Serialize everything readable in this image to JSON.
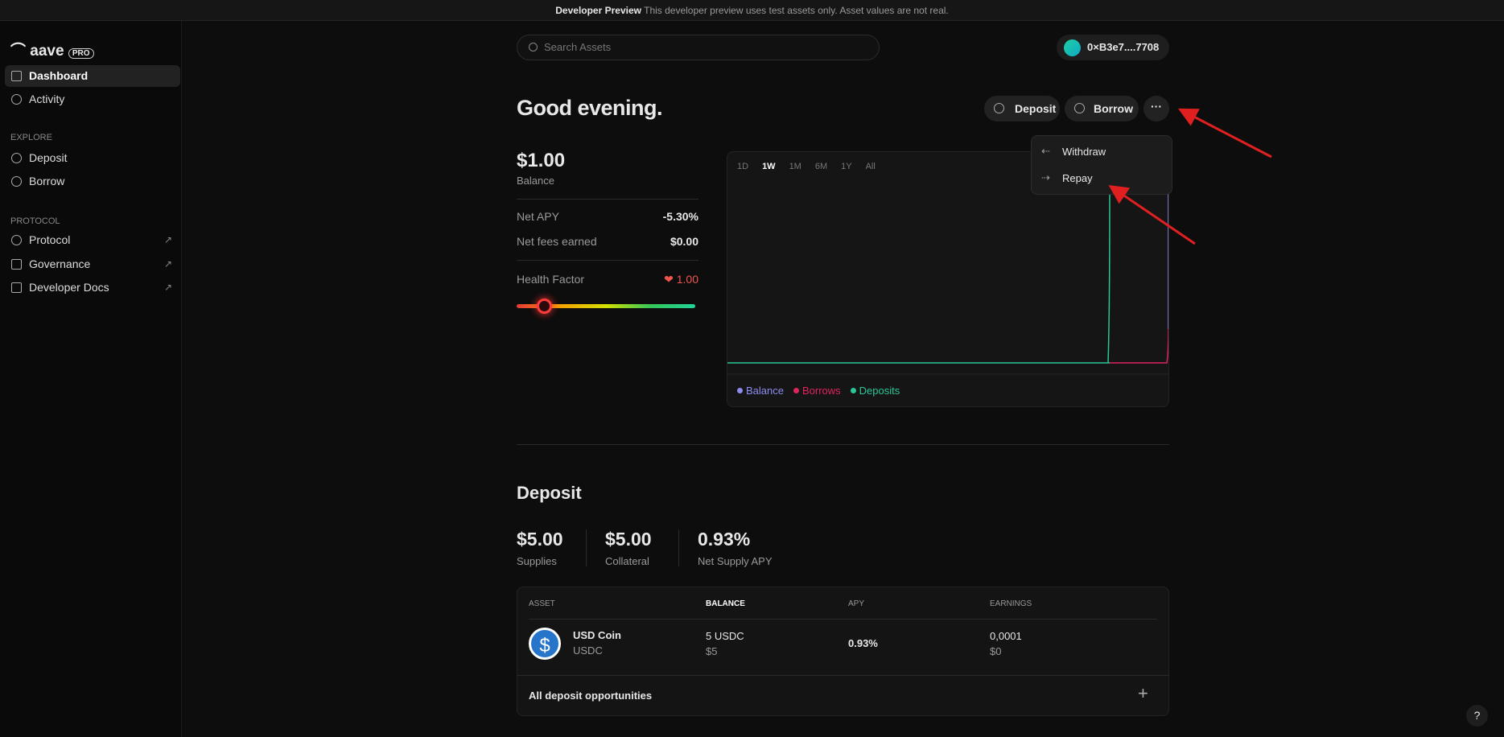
{
  "banner": {
    "title": "Developer Preview",
    "text": "This developer preview uses test assets only. Asset values are not real."
  },
  "sidebar": {
    "logo": "aave",
    "badge": "PRO",
    "nav": [
      "Dashboard",
      "Activity"
    ],
    "explore": {
      "heading": "EXPLORE",
      "items": [
        "Deposit",
        "Borrow"
      ]
    },
    "protocol": {
      "heading": "PROTOCOL",
      "items": [
        "Protocol",
        "Governance",
        "Developer Docs"
      ]
    }
  },
  "header": {
    "search": "Search Assets",
    "wallet": "0×B3e7....7708"
  },
  "greeting": "Good evening.",
  "actions": {
    "deposit": "Deposit",
    "borrow": "Borrow",
    "menu": [
      "Withdraw",
      "Repay"
    ]
  },
  "summary": {
    "balance": "$1.00",
    "balance_label": "Balance",
    "net_apy_label": "Net APY",
    "net_apy": "-5.30%",
    "fees_label": "Net fees earned",
    "fees": "$0.00",
    "health_label": "Health Factor",
    "health": "1.00"
  },
  "chart": {
    "timeframes": [
      "1D",
      "1W",
      "1M",
      "6M",
      "1Y",
      "All"
    ],
    "legend": [
      "Balance",
      "Borrows",
      "Deposits"
    ]
  },
  "deposit": {
    "title": "Deposit",
    "stats": [
      {
        "value": "$5.00",
        "label": "Supplies"
      },
      {
        "value": "$5.00",
        "label": "Collateral"
      },
      {
        "value": "0.93%",
        "label": "Net Supply APY"
      }
    ],
    "table": {
      "headers": [
        "ASSET",
        "BALANCE",
        "APY",
        "EARNINGS"
      ],
      "rows": [
        {
          "name": "USD Coin",
          "symbol": "USDC",
          "balance": "5 USDC",
          "balance_usd": "$5",
          "apy": "0.93%",
          "earnings": "0,0001",
          "earnings_usd": "$0"
        }
      ],
      "footer": "All deposit opportunities"
    }
  },
  "help": "?"
}
